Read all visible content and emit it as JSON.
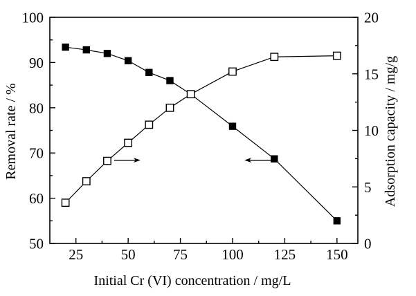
{
  "figure": {
    "background": "#ffffff",
    "axis_color": "#000000",
    "text_color": "#000000"
  },
  "chart_data": {
    "type": "line",
    "title": "",
    "xlabel": "Initial Cr (VI) concentration / mg/L",
    "ylabel_left": "Removal rate / %",
    "ylabel_right": "Adsorption capacity / mg/g",
    "grid": false,
    "legend": "none",
    "x": [
      20,
      30,
      40,
      50,
      60,
      70,
      80,
      100,
      120,
      150
    ],
    "series": [
      {
        "key": "removal_rate",
        "name": "Removal rate",
        "axis": "left",
        "marker": "filled-square",
        "color": "#000000",
        "values": [
          93.4,
          92.8,
          92.0,
          90.4,
          87.8,
          86.0,
          83.0,
          75.9,
          68.7,
          55.0
        ]
      },
      {
        "key": "adsorption_capacity",
        "name": "Adsorption capacity",
        "axis": "right",
        "marker": "open-square",
        "color": "#000000",
        "values": [
          3.6,
          5.5,
          7.3,
          8.9,
          10.5,
          12.0,
          13.2,
          15.2,
          16.5,
          16.6
        ]
      }
    ],
    "x_axis": {
      "min": 12.5,
      "max": 160,
      "major_ticks": [
        25,
        50,
        75,
        100,
        125,
        150
      ],
      "tick_labels": [
        "25",
        "50",
        "75",
        "100",
        "125",
        "150"
      ],
      "minor_ticks": [
        37.5,
        62.5,
        87.5,
        112.5,
        137.5
      ]
    },
    "y_axis_left": {
      "min": 50,
      "max": 100,
      "major_ticks": [
        50,
        60,
        70,
        80,
        90,
        100
      ],
      "tick_labels": [
        "50",
        "60",
        "70",
        "80",
        "90",
        "100"
      ],
      "minor_ticks": [
        55,
        65,
        75,
        85,
        95
      ]
    },
    "y_axis_right": {
      "min": 0,
      "max": 20,
      "major_ticks": [
        0,
        5,
        10,
        15,
        20
      ],
      "tick_labels": [
        "0",
        "5",
        "10",
        "15",
        "20"
      ],
      "minor_ticks": [
        2.5,
        7.5,
        12.5,
        17.5
      ]
    },
    "annotations": [
      {
        "key": "capacity-axis-arrow",
        "type": "arrow",
        "direction": "right",
        "x_start": 43.3,
        "x_end": 55.9,
        "y_left_axis": 68.4
      },
      {
        "key": "removal-axis-arrow",
        "type": "arrow",
        "direction": "left",
        "x_start": 119.6,
        "x_end": 105.7,
        "y_left_axis": 68.4
      }
    ]
  }
}
